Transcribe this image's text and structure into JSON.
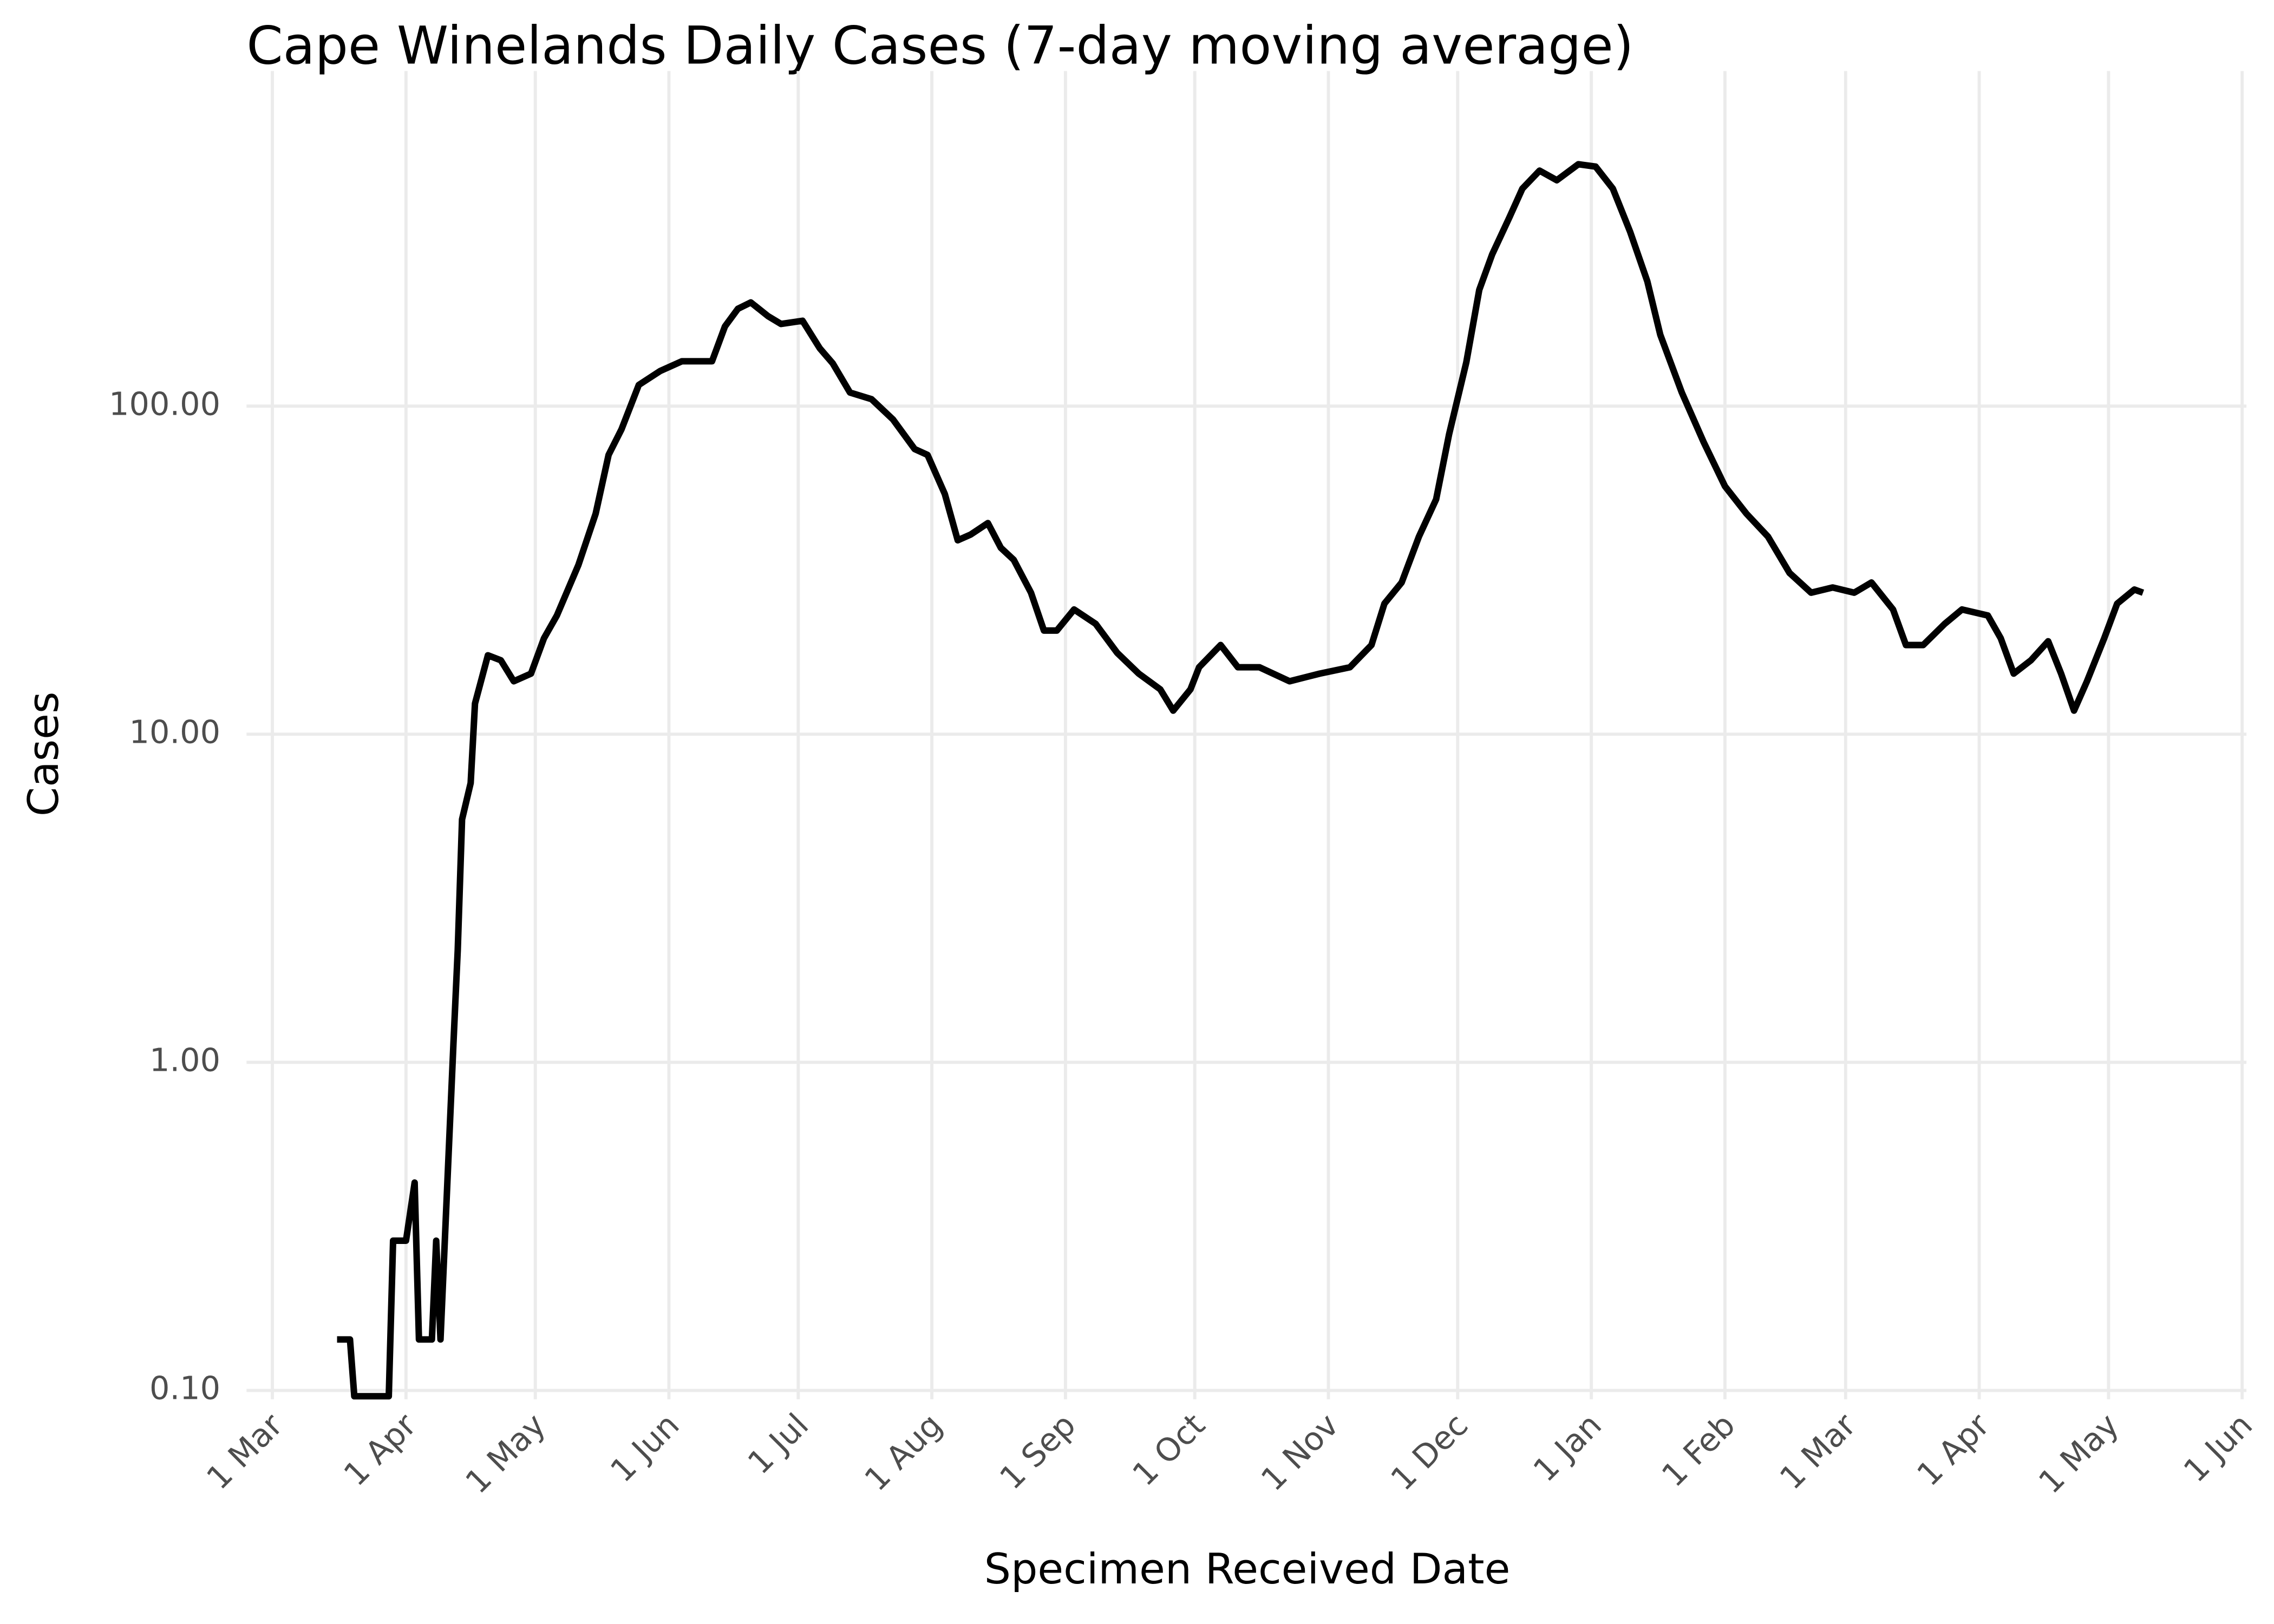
{
  "chart_data": {
    "type": "line",
    "title": "Cape Winelands Daily Cases (7-day moving average)",
    "x_label": "Specimen Received Date",
    "y_label": "Cases",
    "x": [
      15,
      18,
      19,
      27,
      28,
      31,
      33,
      34,
      37,
      38,
      39,
      42,
      43,
      44,
      46,
      47,
      50,
      53,
      56,
      60,
      63,
      66,
      71,
      75,
      78,
      81,
      85,
      90,
      95,
      102,
      105,
      108,
      111,
      115,
      118,
      123,
      127,
      130,
      134,
      139,
      144,
      149,
      152,
      156,
      159,
      162,
      166,
      169,
      172,
      176,
      179,
      182,
      186,
      191,
      196,
      201,
      206,
      209,
      213,
      215,
      220,
      224,
      229,
      236,
      243,
      250,
      255,
      258,
      262,
      266,
      270,
      273,
      277,
      280,
      283,
      287,
      290,
      294,
      298,
      303,
      307,
      311,
      315,
      319,
      322,
      327,
      332,
      337,
      342,
      347,
      352,
      357,
      362,
      367,
      371,
      376,
      379,
      383,
      388,
      392,
      398,
      401,
      404,
      408,
      412,
      415,
      418,
      421,
      425,
      428,
      432,
      434
    ],
    "values": [
      0.143,
      0.143,
      0.096,
      0.096,
      0.286,
      0.286,
      0.43,
      0.143,
      0.143,
      0.286,
      0.143,
      1.14,
      2.2,
      5.5,
      7.1,
      12.4,
      17.4,
      16.8,
      14.5,
      15.3,
      19.6,
      23,
      32.8,
      47,
      71,
      85,
      116,
      128,
      137,
      137,
      175,
      198,
      207,
      188,
      178,
      182,
      150,
      135,
      110,
      105,
      91,
      74,
      71,
      54,
      39,
      40.6,
      44,
      37,
      34,
      27,
      20.7,
      20.7,
      24,
      21.7,
      17.7,
      15.3,
      13.7,
      11.8,
      13.7,
      16,
      18.7,
      16,
      16,
      14.5,
      15.3,
      16,
      18.7,
      25,
      29,
      40,
      52,
      82,
      136,
      226,
      290,
      376,
      460,
      522,
      488,
      546,
      537,
      460,
      340,
      240,
      165,
      110,
      78,
      57,
      47,
      40,
      31,
      27,
      28,
      27,
      29,
      24,
      18.7,
      18.7,
      21.7,
      24,
      23,
      19.6,
      15.3,
      16.8,
      19.2,
      15.3,
      11.8,
      14.5,
      19.6,
      25,
      27.6,
      27
    ],
    "color": "#000000",
    "xlim": [
      -6,
      458
    ],
    "xticks": [
      {
        "value": 0,
        "label": "1 Mar"
      },
      {
        "value": 31,
        "label": "1 Apr"
      },
      {
        "value": 61,
        "label": "1 May"
      },
      {
        "value": 92,
        "label": "1 Jun"
      },
      {
        "value": 122,
        "label": "1 Jul"
      },
      {
        "value": 153,
        "label": "1 Aug"
      },
      {
        "value": 184,
        "label": "1 Sep"
      },
      {
        "value": 214,
        "label": "1 Oct"
      },
      {
        "value": 245,
        "label": "1 Nov"
      },
      {
        "value": 275,
        "label": "1 Dec"
      },
      {
        "value": 306,
        "label": "1 Jan"
      },
      {
        "value": 337,
        "label": "1 Feb"
      },
      {
        "value": 365,
        "label": "1 Mar"
      },
      {
        "value": 396,
        "label": "1 Apr"
      },
      {
        "value": 426,
        "label": "1 May"
      },
      {
        "value": 457,
        "label": "1 Jun"
      }
    ],
    "ylim": [
      0.094,
      1050
    ],
    "yticks": [
      {
        "value": 0.1,
        "label": "0.10"
      },
      {
        "value": 1,
        "label": "1.00"
      },
      {
        "value": 10,
        "label": "10.00"
      },
      {
        "value": 100,
        "label": "100.00"
      }
    ],
    "yscale": "log",
    "grid": true
  }
}
